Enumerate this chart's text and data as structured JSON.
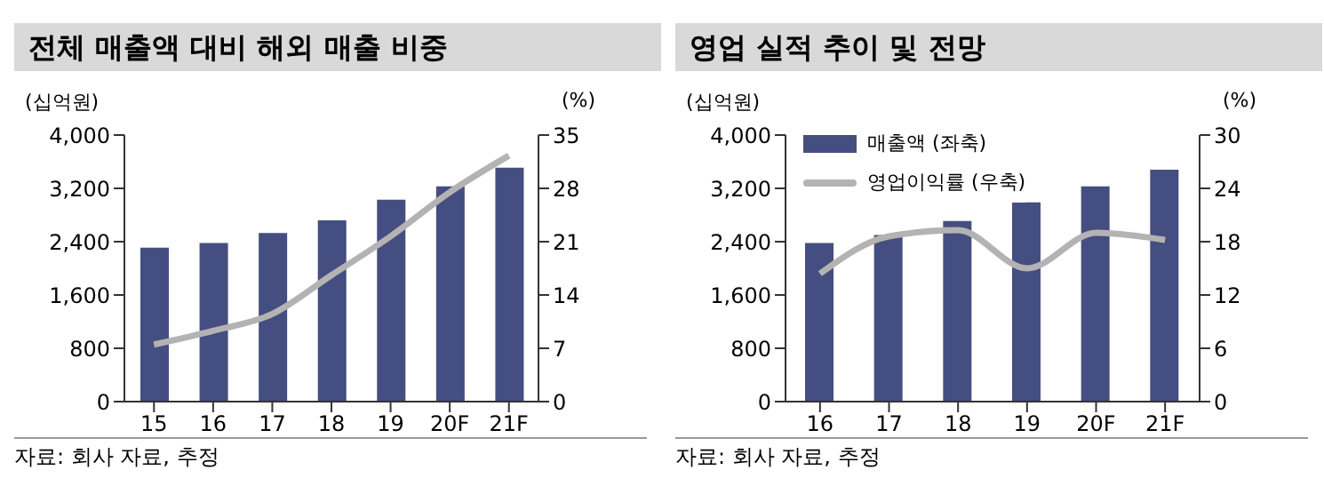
{
  "chart_data": [
    {
      "type": "bar",
      "title": "전체 매출액 대비 해외 매출 비중",
      "ylabel": "(십억원)",
      "y2label": "(%)",
      "categories": [
        "15",
        "16",
        "17",
        "18",
        "19",
        "20F",
        "21F"
      ],
      "series": [
        {
          "color": "#444e80",
          "values": [
            2310,
            2380,
            2530,
            2720,
            3030,
            3230,
            3510
          ]
        },
        {
          "type": "line",
          "axis": "y2",
          "color": "#b3b3b3",
          "values": [
            7.5,
            9.3,
            11.5,
            16.6,
            21.7,
            27.5,
            32.3
          ]
        }
      ],
      "ylim": [
        0,
        4000
      ],
      "yticks": [
        0,
        {
          "value": 800,
          "label": "800"
        },
        {
          "value": 1600,
          "label": "1,600"
        },
        {
          "value": 2400,
          "label": "2,400"
        },
        {
          "value": 3200,
          "label": "3,200"
        },
        {
          "value": 4000,
          "label": "4,000"
        }
      ],
      "y2lim": [
        0,
        35
      ],
      "y2ticks": [
        0,
        7,
        14,
        21,
        28,
        35
      ],
      "grid": false,
      "legend": false,
      "marker": "none",
      "annotations": [
        "자료: 회사 자료, 추정"
      ]
    },
    {
      "type": "bar",
      "title": "영업 실적 추이 및 전망",
      "ylabel": "(십억원)",
      "y2label": "(%)",
      "categories": [
        "16",
        "17",
        "18",
        "19",
        "20F",
        "21F"
      ],
      "series": [
        {
          "name": "매출액 (좌축)",
          "color": "#444e80",
          "values": [
            2380,
            2500,
            2710,
            2990,
            3230,
            3480
          ]
        },
        {
          "type": "line",
          "axis": "y2",
          "name": "영업이익률 (우축)",
          "color": "#b3b3b3",
          "values": [
            14.4,
            18.6,
            19.3,
            15.0,
            19.0,
            18.2
          ]
        }
      ],
      "ylim": [
        0,
        4000
      ],
      "yticks": [
        0,
        {
          "value": 800,
          "label": "800"
        },
        {
          "value": 1600,
          "label": "1,600"
        },
        {
          "value": 2400,
          "label": "2,400"
        },
        {
          "value": 3200,
          "label": "3,200"
        },
        {
          "value": 4000,
          "label": "4,000"
        }
      ],
      "y2lim": [
        0,
        30
      ],
      "y2ticks": [
        0,
        6,
        12,
        18,
        24,
        30
      ],
      "grid": false,
      "legend": "top left",
      "marker": "none",
      "annotations": [
        "자료: 회사 자료, 추정"
      ]
    }
  ]
}
